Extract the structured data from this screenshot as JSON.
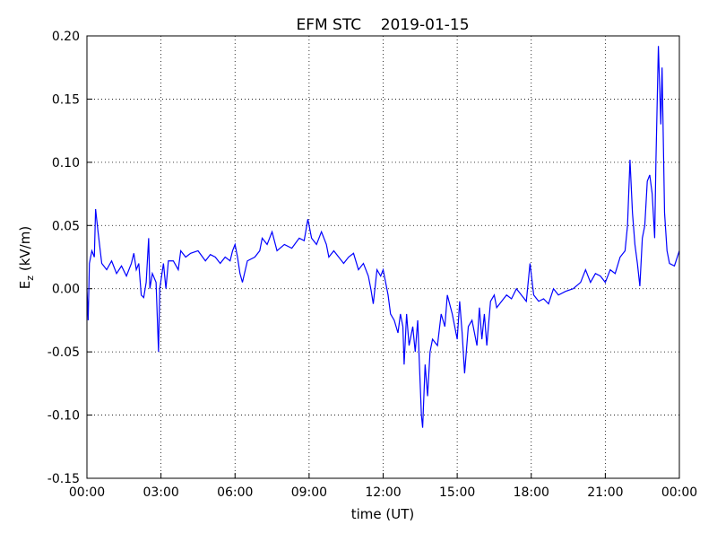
{
  "chart_data": {
    "type": "line",
    "title": "EFM STC    2019-01-15",
    "xlabel": "time (UT)",
    "ylabel": {
      "symbol": "E",
      "subscript": "z",
      "unit": "(kV/m)"
    },
    "xlim": [
      0,
      24
    ],
    "ylim": [
      -0.15,
      0.2
    ],
    "grid": true,
    "xticks": [
      {
        "value": 0,
        "label": "00:00"
      },
      {
        "value": 3,
        "label": "03:00"
      },
      {
        "value": 6,
        "label": "06:00"
      },
      {
        "value": 9,
        "label": "09:00"
      },
      {
        "value": 12,
        "label": "12:00"
      },
      {
        "value": 15,
        "label": "15:00"
      },
      {
        "value": 18,
        "label": "18:00"
      },
      {
        "value": 21,
        "label": "21:00"
      },
      {
        "value": 24,
        "label": "00:00"
      }
    ],
    "yticks": [
      {
        "value": -0.15,
        "label": "-0.15"
      },
      {
        "value": -0.1,
        "label": "-0.10"
      },
      {
        "value": -0.05,
        "label": "-0.05"
      },
      {
        "value": 0,
        "label": "0.00"
      },
      {
        "value": 0.05,
        "label": "0.05"
      },
      {
        "value": 0.1,
        "label": "0.10"
      },
      {
        "value": 0.15,
        "label": "0.15"
      },
      {
        "value": 0.2,
        "label": "0.20"
      }
    ],
    "series": [
      {
        "color": "#0000ff",
        "x": [
          0.0,
          0.05,
          0.1,
          0.2,
          0.3,
          0.35,
          0.45,
          0.6,
          0.8,
          1.0,
          1.2,
          1.4,
          1.6,
          1.8,
          1.9,
          2.0,
          2.1,
          2.2,
          2.3,
          2.4,
          2.5,
          2.55,
          2.65,
          2.8,
          2.9,
          2.95,
          3.1,
          3.2,
          3.3,
          3.5,
          3.7,
          3.8,
          4.0,
          4.2,
          4.5,
          4.8,
          5.0,
          5.2,
          5.4,
          5.6,
          5.8,
          5.9,
          6.0,
          6.1,
          6.2,
          6.3,
          6.5,
          6.8,
          7.0,
          7.1,
          7.3,
          7.5,
          7.7,
          8.0,
          8.3,
          8.6,
          8.8,
          8.95,
          9.1,
          9.3,
          9.5,
          9.7,
          9.8,
          10.0,
          10.2,
          10.4,
          10.6,
          10.8,
          11.0,
          11.2,
          11.4,
          11.5,
          11.6,
          11.75,
          11.9,
          12.0,
          12.1,
          12.2,
          12.3,
          12.45,
          12.6,
          12.7,
          12.8,
          12.85,
          12.95,
          13.05,
          13.2,
          13.3,
          13.4,
          13.5,
          13.55,
          13.6,
          13.7,
          13.8,
          13.9,
          14.0,
          14.2,
          14.35,
          14.5,
          14.6,
          14.8,
          15.0,
          15.1,
          15.2,
          15.3,
          15.45,
          15.6,
          15.7,
          15.8,
          15.9,
          16.0,
          16.1,
          16.2,
          16.35,
          16.5,
          16.6,
          16.8,
          17.0,
          17.2,
          17.4,
          17.6,
          17.8,
          17.95,
          18.1,
          18.3,
          18.5,
          18.7,
          18.9,
          19.1,
          19.4,
          19.7,
          20.0,
          20.2,
          20.4,
          20.6,
          20.8,
          21.0,
          21.2,
          21.4,
          21.6,
          21.8,
          21.9,
          22.0,
          22.1,
          22.2,
          22.3,
          22.4,
          22.5,
          22.6,
          22.7,
          22.8,
          22.9,
          23.0,
          23.05,
          23.15,
          23.25,
          23.3,
          23.4,
          23.5,
          23.6,
          23.8,
          24.0
        ],
        "values": [
          0.0,
          -0.025,
          0.02,
          0.03,
          0.025,
          0.063,
          0.045,
          0.02,
          0.015,
          0.022,
          0.012,
          0.018,
          0.01,
          0.02,
          0.028,
          0.015,
          0.02,
          -0.005,
          -0.007,
          0.005,
          0.04,
          0.0,
          0.012,
          0.005,
          -0.05,
          0.0,
          0.02,
          0.0,
          0.022,
          0.022,
          0.015,
          0.03,
          0.025,
          0.028,
          0.03,
          0.022,
          0.027,
          0.025,
          0.02,
          0.025,
          0.022,
          0.03,
          0.035,
          0.025,
          0.012,
          0.005,
          0.022,
          0.025,
          0.03,
          0.04,
          0.035,
          0.045,
          0.03,
          0.035,
          0.032,
          0.04,
          0.038,
          0.055,
          0.04,
          0.035,
          0.045,
          0.035,
          0.025,
          0.03,
          0.025,
          0.02,
          0.025,
          0.028,
          0.015,
          0.02,
          0.01,
          0.0,
          -0.012,
          0.015,
          0.01,
          0.015,
          0.005,
          -0.005,
          -0.02,
          -0.025,
          -0.035,
          -0.02,
          -0.03,
          -0.06,
          -0.02,
          -0.045,
          -0.03,
          -0.05,
          -0.025,
          -0.075,
          -0.1,
          -0.11,
          -0.06,
          -0.085,
          -0.05,
          -0.04,
          -0.045,
          -0.02,
          -0.03,
          -0.005,
          -0.02,
          -0.04,
          -0.01,
          -0.035,
          -0.067,
          -0.03,
          -0.025,
          -0.035,
          -0.045,
          -0.015,
          -0.04,
          -0.02,
          -0.045,
          -0.01,
          -0.005,
          -0.015,
          -0.01,
          -0.005,
          -0.008,
          0.0,
          -0.005,
          -0.01,
          0.02,
          -0.005,
          -0.01,
          -0.008,
          -0.012,
          0.0,
          -0.005,
          -0.002,
          0.0,
          0.005,
          0.015,
          0.005,
          0.012,
          0.01,
          0.005,
          0.015,
          0.012,
          0.025,
          0.03,
          0.05,
          0.102,
          0.06,
          0.035,
          0.02,
          0.002,
          0.04,
          0.05,
          0.085,
          0.09,
          0.075,
          0.04,
          0.1,
          0.192,
          0.13,
          0.175,
          0.06,
          0.03,
          0.02,
          0.018,
          0.03
        ]
      }
    ]
  }
}
